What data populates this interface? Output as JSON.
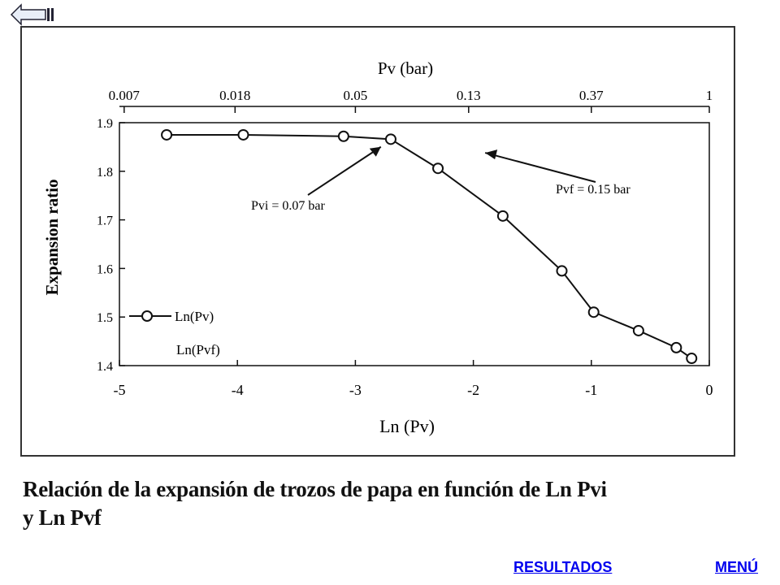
{
  "navigation": {
    "back_icon": "back-arrow-icon",
    "resultados_label": "RESULTADOS",
    "menu_label": "MENÚ",
    "link_color": "#0000ee"
  },
  "caption": {
    "line1": "Relación de la expansión de trozos de papa en función de Ln Pvi",
    "line2": "y Ln Pvf"
  },
  "chart_data": {
    "type": "line",
    "title": "",
    "xlabel": "Ln (Pv)",
    "ylabel": "Expansion ratio",
    "top_axis_label": "Pv (bar)",
    "xlim": [
      -5,
      0
    ],
    "ylim": [
      1.4,
      1.9
    ],
    "x_ticks": [
      -5,
      -4,
      -3,
      -2,
      -1,
      0
    ],
    "x_tick_labels": [
      "-5",
      "-4",
      "-3",
      "-2",
      "-1",
      "0"
    ],
    "y_ticks": [
      1.4,
      1.5,
      1.6,
      1.7,
      1.8,
      1.9
    ],
    "y_tick_labels": [
      "1.4",
      "1.5",
      "1.6",
      "1.7",
      "1.8",
      "1.9"
    ],
    "top_ticks": [
      -4.96,
      -4.02,
      -3.0,
      -2.04,
      -1.0,
      0.0
    ],
    "top_tick_labels": [
      "0.007",
      "0.018",
      "0.05",
      "0.13",
      "0.37",
      "1"
    ],
    "grid": false,
    "legend_position": "bottom-left",
    "series": [
      {
        "name": "Ln(Pv)",
        "marker": "open-circle",
        "x": [
          -4.6,
          -3.95,
          -3.1,
          -2.7,
          -2.3,
          -1.75,
          -1.25,
          -0.98,
          -0.6,
          -0.28,
          -0.15
        ],
        "y": [
          1.875,
          1.875,
          1.872,
          1.866,
          1.806,
          1.708,
          1.595,
          1.51,
          1.472,
          1.437,
          1.415
        ]
      },
      {
        "name": "Ln(Pvf)",
        "marker": "none",
        "x": [],
        "y": []
      }
    ],
    "annotations": [
      {
        "text": "Pvi = 0.07 bar",
        "x": -2.66,
        "y": 1.867
      },
      {
        "text": "Pvf = 0.15 bar",
        "x": -1.9,
        "y": 1.838
      }
    ]
  }
}
